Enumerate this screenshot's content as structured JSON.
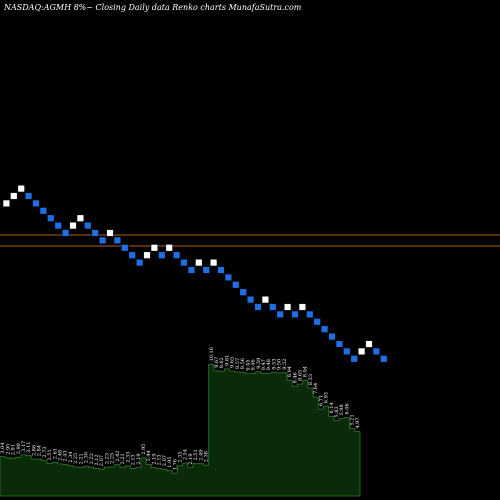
{
  "chart_data": {
    "type": "renko",
    "title": "NASDAQ:AGMH 8%~  Closing Daily data  Renko  charts MunafaSutra.com",
    "colors": {
      "background": "#000000",
      "up_brick": "#ffffff",
      "down_brick": "#1e6fe6",
      "reference_line": "#b0601e",
      "volume_fill": "#0a2a0a",
      "volume_line": "#2a7a2a"
    },
    "bricks": [
      {
        "d": "up"
      },
      {
        "d": "up"
      },
      {
        "d": "up"
      },
      {
        "d": "down"
      },
      {
        "d": "down"
      },
      {
        "d": "down"
      },
      {
        "d": "down"
      },
      {
        "d": "down"
      },
      {
        "d": "down"
      },
      {
        "d": "up"
      },
      {
        "d": "up"
      },
      {
        "d": "down"
      },
      {
        "d": "down"
      },
      {
        "d": "down"
      },
      {
        "d": "up"
      },
      {
        "d": "down"
      },
      {
        "d": "down"
      },
      {
        "d": "down"
      },
      {
        "d": "down"
      },
      {
        "d": "up"
      },
      {
        "d": "up"
      },
      {
        "d": "down"
      },
      {
        "d": "up"
      },
      {
        "d": "down"
      },
      {
        "d": "down"
      },
      {
        "d": "down"
      },
      {
        "d": "up"
      },
      {
        "d": "down"
      },
      {
        "d": "up"
      },
      {
        "d": "down"
      },
      {
        "d": "down"
      },
      {
        "d": "down"
      },
      {
        "d": "down"
      },
      {
        "d": "down"
      },
      {
        "d": "down"
      },
      {
        "d": "up"
      },
      {
        "d": "down"
      },
      {
        "d": "down"
      },
      {
        "d": "up"
      },
      {
        "d": "down"
      },
      {
        "d": "up"
      },
      {
        "d": "down"
      },
      {
        "d": "down"
      },
      {
        "d": "down"
      },
      {
        "d": "down"
      },
      {
        "d": "down"
      },
      {
        "d": "down"
      },
      {
        "d": "down"
      },
      {
        "d": "up"
      },
      {
        "d": "up"
      },
      {
        "d": "down"
      },
      {
        "d": "down"
      }
    ],
    "volume_labels": [
      "3.04",
      "2.95",
      "2.91",
      "2.99",
      "3.17",
      "3.11",
      "2.86",
      "2.84",
      "2.73",
      "2.51",
      "2.61",
      "2.48",
      "2.43",
      "2.34",
      "2.25",
      "2.21",
      "2.30",
      "2.22",
      "2.12",
      "2.07",
      "2.23",
      "2.25",
      "2.42",
      "2.21",
      "2.33",
      "2.13",
      "2.19",
      "2.95",
      "2.44",
      "2.19",
      "2.13",
      "2.07",
      "1.95",
      "1.76",
      "2.35",
      "2.54",
      "2.19",
      "2.51",
      "2.49",
      "2.38",
      "10.16",
      "9.67",
      "9.62",
      "9.81",
      "9.65",
      "9.57",
      "9.56",
      "9.45",
      "9.46",
      "9.59",
      "9.47",
      "9.48",
      "9.53",
      "9.50",
      "9.52",
      "8.94",
      "8.46",
      "8.65",
      "8.94",
      "8.33",
      "7.64",
      "6.71",
      "6.93",
      "6.14",
      "5.83",
      "5.98",
      "6.06",
      "5.21",
      "4.97"
    ]
  }
}
